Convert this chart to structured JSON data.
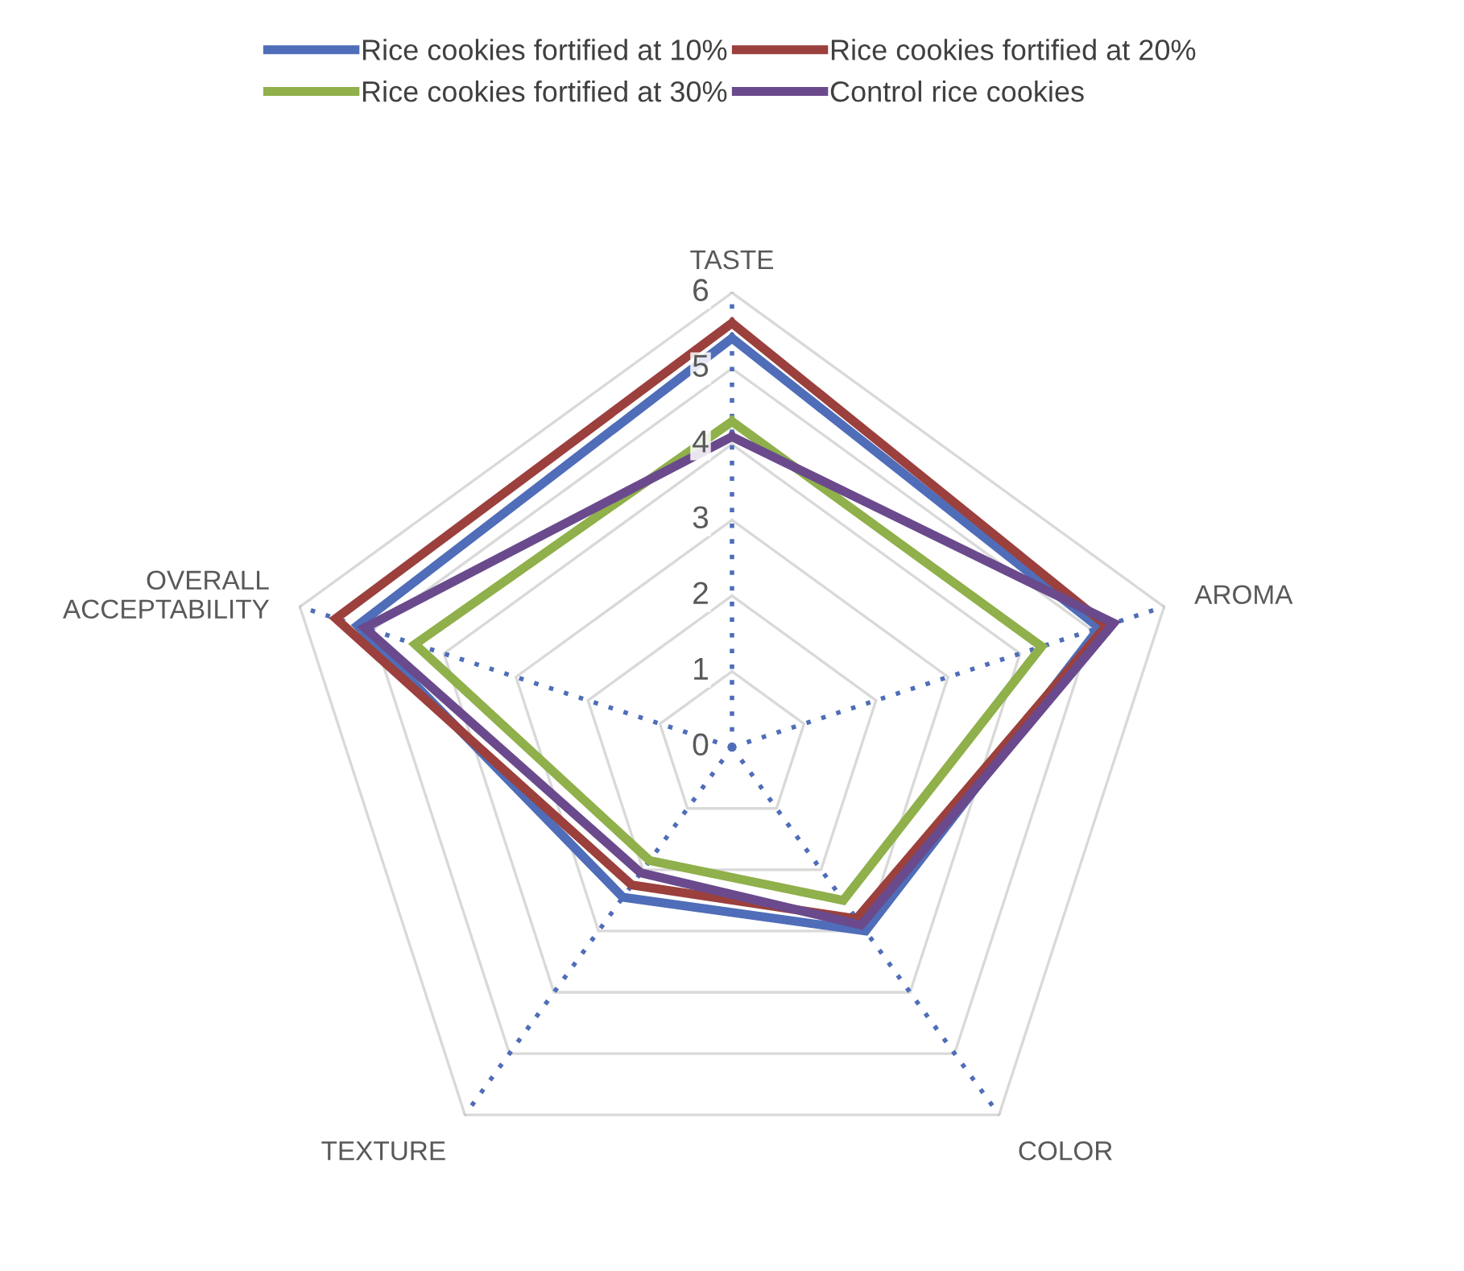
{
  "chart_data": {
    "type": "radar",
    "categories": [
      "TASTE",
      "AROMA",
      "COLOR",
      "TEXTURE",
      "OVERALL ACCEPTABILITY"
    ],
    "series": [
      {
        "name": "Rice cookies fortified at 10%",
        "color": "#4f6db8",
        "values": [
          5.4,
          5.1,
          3.0,
          2.45,
          5.2
        ]
      },
      {
        "name": "Rice cookies fortified at 20%",
        "color": "#9b403d",
        "values": [
          5.6,
          5.2,
          2.8,
          2.25,
          5.5
        ]
      },
      {
        "name": "Rice cookies fortified at 30%",
        "color": "#8fb04a",
        "values": [
          4.3,
          4.3,
          2.5,
          1.85,
          4.4
        ]
      },
      {
        "name": "Control rice cookies",
        "color": "#6a4a8c",
        "values": [
          4.1,
          5.3,
          2.9,
          2.05,
          5.1
        ]
      }
    ],
    "ylim": [
      0,
      6
    ],
    "yticks": [
      0,
      1,
      2,
      3,
      4,
      5,
      6
    ],
    "grid": true,
    "legend": "top",
    "marker": "none",
    "line_style": "solid"
  }
}
